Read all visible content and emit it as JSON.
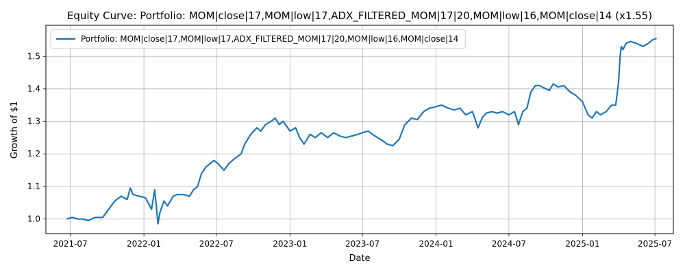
{
  "chart_data": {
    "type": "line",
    "title": "Equity Curve: Portfolio: MOM|close|17,MOM|low|17,ADX_FILTERED_MOM|17|20,MOM|low|16,MOM|close|14 (x1.55)",
    "xlabel": "Date",
    "ylabel": "Growth of $1",
    "xlim": [
      "2021-05-01",
      "2025-08-16"
    ],
    "ylim": [
      0.955,
      1.595
    ],
    "x_ticks": [
      "2021-07",
      "2022-01",
      "2022-07",
      "2023-01",
      "2023-07",
      "2024-01",
      "2024-07",
      "2025-01",
      "2025-07"
    ],
    "y_ticks": [
      1.0,
      1.1,
      1.2,
      1.3,
      1.4,
      1.5
    ],
    "y_tick_labels": [
      "1.0",
      "1.1",
      "1.2",
      "1.3",
      "1.4",
      "1.5"
    ],
    "grid": true,
    "legend_position": "top-left",
    "series": [
      {
        "name": "Portfolio: MOM|close|17,MOM|low|17,ADX_FILTERED_MOM|17|20,MOM|low|16,MOM|close|14",
        "color": "#1f77b4",
        "x": [
          "2021-06-22",
          "2021-07-05",
          "2021-07-20",
          "2021-08-01",
          "2021-08-15",
          "2021-09-01",
          "2021-09-20",
          "2021-10-05",
          "2021-10-20",
          "2021-11-05",
          "2021-11-20",
          "2021-11-28",
          "2021-12-05",
          "2021-12-20",
          "2022-01-05",
          "2022-01-20",
          "2022-01-28",
          "2022-02-05",
          "2022-02-10",
          "2022-02-20",
          "2022-03-01",
          "2022-03-15",
          "2022-03-25",
          "2022-04-10",
          "2022-04-25",
          "2022-05-05",
          "2022-05-15",
          "2022-05-25",
          "2022-06-05",
          "2022-06-15",
          "2022-06-25",
          "2022-07-05",
          "2022-07-20",
          "2022-08-01",
          "2022-08-15",
          "2022-09-01",
          "2022-09-10",
          "2022-09-25",
          "2022-10-10",
          "2022-10-20",
          "2022-11-01",
          "2022-11-15",
          "2022-11-25",
          "2022-12-05",
          "2022-12-15",
          "2023-01-01",
          "2023-01-15",
          "2023-01-25",
          "2023-02-05",
          "2023-02-20",
          "2023-03-05",
          "2023-03-20",
          "2023-04-05",
          "2023-04-20",
          "2023-05-05",
          "2023-05-20",
          "2023-06-05",
          "2023-06-20",
          "2023-07-01",
          "2023-07-15",
          "2023-08-01",
          "2023-08-15",
          "2023-09-01",
          "2023-09-15",
          "2023-10-01",
          "2023-10-15",
          "2023-11-01",
          "2023-11-15",
          "2023-12-01",
          "2023-12-15",
          "2024-01-01",
          "2024-01-15",
          "2024-02-01",
          "2024-02-15",
          "2024-03-01",
          "2024-03-15",
          "2024-04-01",
          "2024-04-15",
          "2024-04-25",
          "2024-05-05",
          "2024-05-20",
          "2024-06-01",
          "2024-06-15",
          "2024-07-01",
          "2024-07-15",
          "2024-07-25",
          "2024-08-05",
          "2024-08-15",
          "2024-08-25",
          "2024-09-05",
          "2024-09-15",
          "2024-10-01",
          "2024-10-10",
          "2024-10-20",
          "2024-11-01",
          "2024-11-15",
          "2024-12-01",
          "2024-12-15",
          "2025-01-01",
          "2025-01-15",
          "2025-01-25",
          "2025-02-05",
          "2025-02-15",
          "2025-03-01",
          "2025-03-15",
          "2025-03-25",
          "2025-04-01",
          "2025-04-05",
          "2025-04-08",
          "2025-04-12",
          "2025-04-20",
          "2025-05-01",
          "2025-05-15",
          "2025-06-01",
          "2025-06-15",
          "2025-06-25",
          "2025-07-05"
        ],
        "y": [
          1.0,
          1.005,
          1.0,
          1.0,
          0.995,
          1.005,
          1.005,
          1.03,
          1.055,
          1.07,
          1.06,
          1.095,
          1.075,
          1.07,
          1.065,
          1.03,
          1.09,
          0.985,
          1.02,
          1.055,
          1.04,
          1.07,
          1.075,
          1.075,
          1.07,
          1.09,
          1.1,
          1.14,
          1.16,
          1.17,
          1.18,
          1.17,
          1.15,
          1.17,
          1.185,
          1.2,
          1.23,
          1.26,
          1.28,
          1.27,
          1.29,
          1.3,
          1.31,
          1.29,
          1.3,
          1.27,
          1.28,
          1.25,
          1.23,
          1.26,
          1.25,
          1.265,
          1.25,
          1.265,
          1.255,
          1.25,
          1.255,
          1.26,
          1.265,
          1.27,
          1.255,
          1.245,
          1.23,
          1.225,
          1.245,
          1.29,
          1.31,
          1.305,
          1.33,
          1.34,
          1.345,
          1.35,
          1.34,
          1.335,
          1.34,
          1.32,
          1.33,
          1.28,
          1.31,
          1.325,
          1.33,
          1.325,
          1.33,
          1.32,
          1.33,
          1.29,
          1.33,
          1.34,
          1.39,
          1.41,
          1.41,
          1.4,
          1.395,
          1.415,
          1.405,
          1.41,
          1.39,
          1.38,
          1.36,
          1.32,
          1.31,
          1.33,
          1.32,
          1.33,
          1.35,
          1.35,
          1.42,
          1.5,
          1.53,
          1.52,
          1.54,
          1.545,
          1.54,
          1.53,
          1.54,
          1.55,
          1.555
        ]
      }
    ]
  }
}
